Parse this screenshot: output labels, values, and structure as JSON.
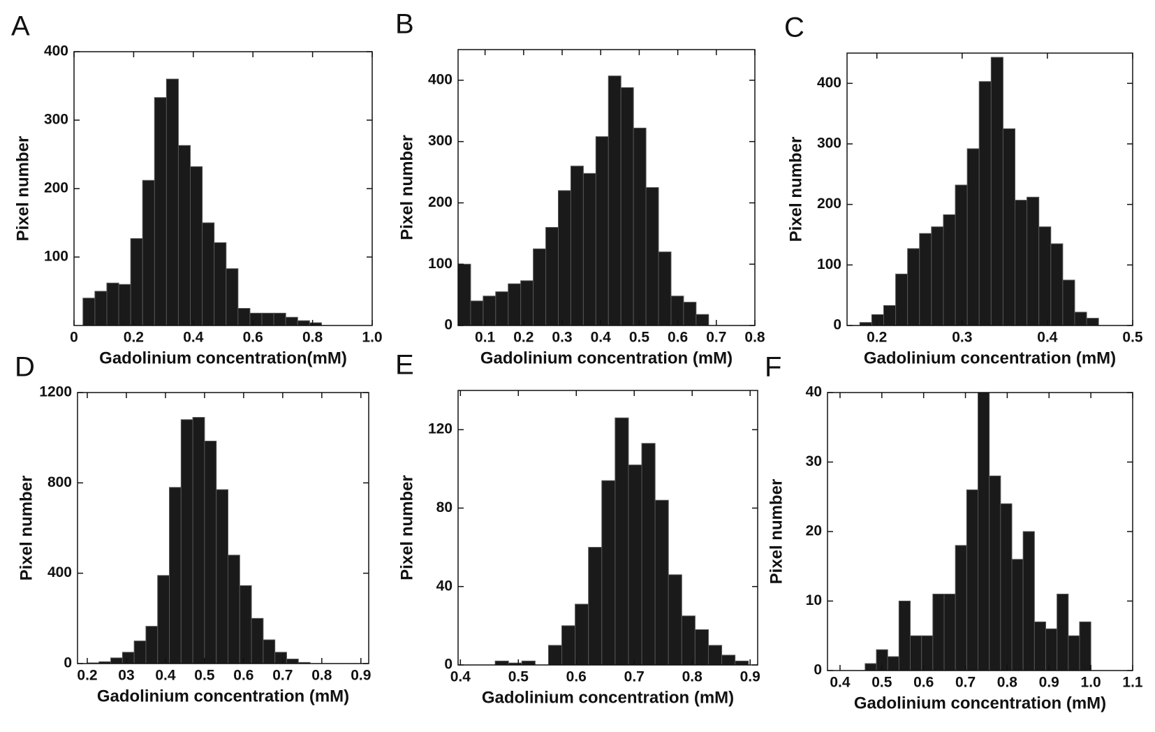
{
  "chart_data": [
    {
      "type": "histogram",
      "label": "A",
      "xlabel": "Gadolinium concentration(mM)",
      "ylabel": "Pixel number",
      "color": "#1a1a1a",
      "bins": [
        0.03,
        0.07,
        0.11,
        0.15,
        0.19,
        0.23,
        0.27,
        0.31,
        0.35,
        0.39,
        0.43,
        0.47,
        0.51,
        0.55,
        0.59,
        0.63,
        0.67,
        0.71,
        0.75,
        0.79,
        0.83
      ],
      "values": [
        40,
        50,
        62,
        60,
        127,
        212,
        333,
        360,
        263,
        232,
        150,
        121,
        83,
        25,
        18,
        18,
        18,
        12,
        7,
        4
      ],
      "xlim": [
        0,
        1
      ],
      "xticks": [
        0,
        0.2,
        0.4,
        0.6,
        0.8,
        {
          "value": 1,
          "label": "1.0"
        }
      ],
      "ylim": [
        0,
        400
      ],
      "yticks": [
        100,
        200,
        300,
        400
      ]
    },
    {
      "type": "histogram",
      "label": "B",
      "xlabel": "Gadolinium concentration (mM)",
      "ylabel": "Pixel number",
      "color": "#1a1a1a",
      "bins": [
        0.03,
        0.0625,
        0.095,
        0.1275,
        0.16,
        0.1925,
        0.225,
        0.2575,
        0.29,
        0.3225,
        0.355,
        0.3875,
        0.42,
        0.4525,
        0.485,
        0.5175,
        0.55,
        0.5825,
        0.615,
        0.6475,
        0.68
      ],
      "values": [
        100,
        40,
        48,
        55,
        68,
        73,
        125,
        160,
        220,
        260,
        248,
        308,
        407,
        388,
        322,
        225,
        120,
        48,
        38,
        18
      ],
      "xlim": [
        0.03,
        0.8
      ],
      "xticks": [
        0.1,
        0.2,
        0.3,
        0.4,
        0.5,
        0.6,
        0.7,
        0.8
      ],
      "ylim": [
        0,
        450
      ],
      "yticks": [
        0,
        100,
        200,
        300,
        400
      ]
    },
    {
      "type": "histogram",
      "label": "C",
      "xlabel": "Gadolinium concentration (mM)",
      "ylabel": "Pixel number",
      "color": "#1a1a1a",
      "bins": [
        0.18,
        0.194,
        0.208,
        0.222,
        0.236,
        0.25,
        0.264,
        0.278,
        0.292,
        0.306,
        0.32,
        0.334,
        0.348,
        0.362,
        0.376,
        0.39,
        0.404,
        0.418,
        0.432,
        0.446,
        0.46
      ],
      "values": [
        5,
        18,
        33,
        85,
        127,
        152,
        163,
        183,
        232,
        292,
        403,
        443,
        325,
        207,
        212,
        163,
        135,
        75,
        22,
        12
      ],
      "xlim": [
        0.165,
        0.5
      ],
      "xticks": [
        0.2,
        0.3,
        0.4,
        0.5
      ],
      "ylim": [
        0,
        450
      ],
      "yticks": [
        0,
        100,
        200,
        300,
        400
      ]
    },
    {
      "type": "histogram",
      "label": "D",
      "xlabel": "Gadolinium concentration (mM)",
      "ylabel": "Pixel number",
      "color": "#1a1a1a",
      "bins": [
        0.2,
        0.23,
        0.26,
        0.29,
        0.32,
        0.35,
        0.38,
        0.41,
        0.44,
        0.47,
        0.5,
        0.53,
        0.56,
        0.59,
        0.62,
        0.65,
        0.68,
        0.71,
        0.74,
        0.77
      ],
      "values": [
        3,
        8,
        25,
        50,
        100,
        165,
        390,
        780,
        1080,
        1090,
        985,
        770,
        480,
        345,
        200,
        105,
        50,
        20,
        5
      ],
      "xlim": [
        0.175,
        0.92
      ],
      "xticks": [
        0.2,
        {
          "value": 0.3,
          "label": "03"
        },
        0.4,
        0.5,
        0.6,
        0.7,
        0.8,
        0.9
      ],
      "ylim": [
        0,
        1200
      ],
      "yticks": [
        0,
        400,
        800,
        1200
      ]
    },
    {
      "type": "histogram",
      "label": "E",
      "xlabel": "Gadolinium concentration (mM)",
      "ylabel": "Pixel number",
      "color": "#1a1a1a",
      "bins": [
        0.46,
        0.483,
        0.506,
        0.529,
        0.552,
        0.575,
        0.598,
        0.621,
        0.644,
        0.667,
        0.69,
        0.713,
        0.736,
        0.759,
        0.782,
        0.805,
        0.828,
        0.851,
        0.874,
        0.897
      ],
      "values": [
        2,
        1,
        2,
        0,
        10,
        20,
        31,
        60,
        94,
        126,
        102,
        113,
        84,
        46,
        25,
        18,
        10,
        5,
        2
      ],
      "xlim": [
        0.396,
        0.913
      ],
      "xticks": [
        0.4,
        0.5,
        0.6,
        0.7,
        0.8,
        0.9
      ],
      "ylim": [
        0,
        140
      ],
      "yticks": [
        0,
        40,
        80,
        120
      ]
    },
    {
      "type": "histogram",
      "label": "F",
      "xlabel": "Gadolinium concentration (mM)",
      "ylabel": "Pixel number",
      "color": "#1a1a1a",
      "bins": [
        0.46,
        0.487,
        0.514,
        0.541,
        0.568,
        0.595,
        0.622,
        0.649,
        0.676,
        0.703,
        0.73,
        0.757,
        0.784,
        0.811,
        0.838,
        0.865,
        0.892,
        0.919,
        0.946,
        0.973,
        1.0
      ],
      "values": [
        1,
        3,
        2,
        10,
        5,
        5,
        11,
        11,
        18,
        26,
        40,
        28,
        24,
        16,
        20,
        7,
        6,
        11,
        5,
        7
      ],
      "xlim": [
        0.37,
        1.1
      ],
      "xticks": [
        0.4,
        0.5,
        0.6,
        0.7,
        0.8,
        0.9,
        {
          "value": 1,
          "label": "1.0"
        },
        1.1
      ],
      "ylim": [
        0,
        40
      ],
      "yticks": [
        0,
        10,
        20,
        30,
        40
      ]
    }
  ]
}
